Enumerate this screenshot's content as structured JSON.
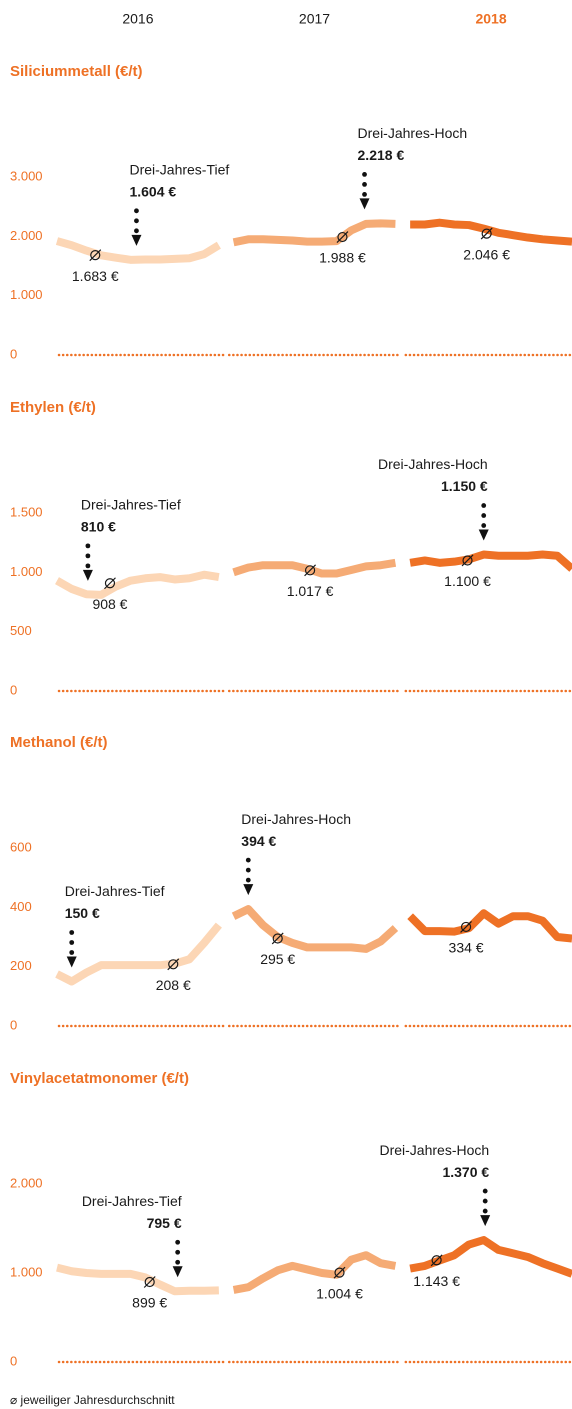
{
  "chart_data": [
    {
      "type": "line",
      "title": "Siliciummetall (€/t)",
      "xlim": [
        0,
        35
      ],
      "ylim": [
        0,
        3000
      ],
      "yticks": [
        0,
        {
          "value": 1000,
          "label": "1.000"
        },
        {
          "value": 2000,
          "label": "2.000"
        },
        {
          "value": 3000,
          "label": "3.000"
        }
      ],
      "baseline": true,
      "series": [
        {
          "name": "2016",
          "color": "#fcd6b5",
          "x": [
            0,
            1,
            2,
            3,
            4,
            5,
            6,
            7,
            8,
            9,
            10,
            11
          ],
          "values": [
            1920,
            1850,
            1760,
            1680,
            1640,
            1604,
            1610,
            1610,
            1620,
            1630,
            1700,
            1850
          ],
          "average": 1683,
          "average_label": "1.683 €",
          "average_x": 2.6
        },
        {
          "name": "2017",
          "color": "#f5ab75",
          "x": [
            12,
            13,
            14,
            15,
            16,
            17,
            18,
            19,
            20,
            21,
            22,
            23
          ],
          "values": [
            1900,
            1950,
            1950,
            1940,
            1930,
            1910,
            1910,
            1920,
            2100,
            2210,
            2218,
            2210
          ],
          "average": 1988,
          "average_label": "1.988 €",
          "average_x": 19.4
        },
        {
          "name": "2018",
          "color": "#ee7125",
          "x": [
            24,
            25,
            26,
            27,
            28,
            29,
            30,
            31,
            32,
            33,
            34,
            35
          ],
          "values": [
            2200,
            2200,
            2230,
            2200,
            2190,
            2130,
            2060,
            2020,
            1980,
            1950,
            1930,
            1910
          ],
          "average": 2046,
          "average_label": "2.046 €",
          "average_x": 29.2
        }
      ],
      "annotations": [
        {
          "text": "Drei-Jahres-Tief",
          "value": 1604,
          "label": "1.604 €",
          "x": 5.4
        },
        {
          "text": "Drei-Jahres-Hoch",
          "value": 2218,
          "label": "2.218 €",
          "x": 20.9
        }
      ]
    },
    {
      "type": "line",
      "title": "Ethylen (€/t)",
      "xlim": [
        0,
        35
      ],
      "ylim": [
        0,
        1500
      ],
      "yticks": [
        0,
        500,
        {
          "value": 1000,
          "label": "1.000"
        },
        {
          "value": 1500,
          "label": "1.500"
        }
      ],
      "baseline": true,
      "series": [
        {
          "name": "2016",
          "color": "#fcd6b5",
          "x": [
            0,
            1,
            2,
            3,
            4,
            5,
            6,
            7,
            8,
            9,
            10,
            11
          ],
          "values": [
            930,
            860,
            815,
            810,
            880,
            930,
            950,
            960,
            940,
            950,
            980,
            960
          ],
          "average": 908,
          "average_label": "908 €",
          "average_x": 3.6
        },
        {
          "name": "2017",
          "color": "#f5ab75",
          "x": [
            12,
            13,
            14,
            15,
            16,
            17,
            18,
            19,
            20,
            21,
            22,
            23
          ],
          "values": [
            1000,
            1040,
            1060,
            1060,
            1060,
            1030,
            990,
            990,
            1020,
            1050,
            1060,
            1080
          ],
          "average": 1017,
          "average_label": "1.017 €",
          "average_x": 17.2
        },
        {
          "name": "2018",
          "color": "#ee7125",
          "x": [
            24,
            25,
            26,
            27,
            28,
            29,
            30,
            31,
            32,
            33,
            34,
            35
          ],
          "values": [
            1080,
            1100,
            1080,
            1090,
            1110,
            1150,
            1140,
            1140,
            1140,
            1150,
            1140,
            1030
          ],
          "average": 1100,
          "average_label": "1.100 €",
          "average_x": 27.9
        }
      ],
      "annotations": [
        {
          "text": "Drei-Jahres-Tief",
          "value": 810,
          "label": "810 €",
          "x": 2.1
        },
        {
          "text": "Drei-Jahres-Hoch",
          "value": 1150,
          "label": "1.150 €",
          "x": 29
        }
      ]
    },
    {
      "type": "line",
      "title": "Methanol (€/t)",
      "xlim": [
        0,
        35
      ],
      "ylim": [
        0,
        600
      ],
      "yticks": [
        0,
        200,
        400,
        600
      ],
      "baseline": true,
      "series": [
        {
          "name": "2016",
          "color": "#fcd6b5",
          "x": [
            0,
            1,
            2,
            3,
            4,
            5,
            6,
            7,
            8,
            9,
            10,
            11
          ],
          "values": [
            175,
            150,
            180,
            205,
            205,
            205,
            205,
            205,
            210,
            225,
            280,
            340
          ],
          "average": 208,
          "average_label": "208 €",
          "average_x": 7.9
        },
        {
          "name": "2017",
          "color": "#f5ab75",
          "x": [
            12,
            13,
            14,
            15,
            16,
            17,
            18,
            19,
            20,
            21,
            22,
            23
          ],
          "values": [
            370,
            394,
            340,
            300,
            280,
            265,
            265,
            265,
            265,
            260,
            285,
            330
          ],
          "average": 295,
          "average_label": "295 €",
          "average_x": 15
        },
        {
          "name": "2018",
          "color": "#ee7125",
          "x": [
            24,
            25,
            26,
            27,
            28,
            29,
            30,
            31,
            32,
            33,
            34,
            35
          ],
          "values": [
            370,
            320,
            320,
            318,
            330,
            380,
            345,
            370,
            370,
            355,
            300,
            295
          ],
          "average": 334,
          "average_label": "334 €",
          "average_x": 27.8
        }
      ],
      "annotations": [
        {
          "text": "Drei-Jahres-Tief",
          "value": 150,
          "label": "150 €",
          "x": 1
        },
        {
          "text": "Drei-Jahres-Hoch",
          "value": 394,
          "label": "394 €",
          "x": 13
        }
      ]
    },
    {
      "type": "line",
      "title": "Vinylacetatmonomer (€/t)",
      "xlim": [
        0,
        35
      ],
      "ylim": [
        0,
        2000
      ],
      "yticks": [
        0,
        {
          "value": 1000,
          "label": "1.000"
        },
        {
          "value": 2000,
          "label": "2.000"
        }
      ],
      "baseline": true,
      "series": [
        {
          "name": "2016",
          "color": "#fcd6b5",
          "x": [
            0,
            1,
            2,
            3,
            4,
            5,
            6,
            7,
            8,
            9,
            10,
            11
          ],
          "values": [
            1060,
            1020,
            1000,
            990,
            990,
            990,
            950,
            870,
            795,
            800,
            800,
            805
          ],
          "average": 899,
          "average_label": "899 €",
          "average_x": 6.3
        },
        {
          "name": "2017",
          "color": "#f5ab75",
          "x": [
            12,
            13,
            14,
            15,
            16,
            17,
            18,
            19,
            20,
            21,
            22,
            23
          ],
          "values": [
            810,
            840,
            940,
            1030,
            1080,
            1040,
            1000,
            980,
            1150,
            1200,
            1110,
            1080
          ],
          "average": 1004,
          "average_label": "1.004 €",
          "average_x": 19.2
        },
        {
          "name": "2018",
          "color": "#ee7125",
          "x": [
            24,
            25,
            26,
            27,
            28,
            29,
            30,
            31,
            32,
            33,
            34,
            35
          ],
          "values": [
            1050,
            1080,
            1140,
            1200,
            1320,
            1370,
            1260,
            1220,
            1180,
            1110,
            1050,
            990
          ],
          "average": 1143,
          "average_label": "1.143 €",
          "average_x": 25.8
        }
      ],
      "annotations": [
        {
          "text": "Drei-Jahres-Tief",
          "value": 795,
          "label": "795 €",
          "x": 8.2
        },
        {
          "text": "Drei-Jahres-Hoch",
          "value": 1370,
          "label": "1.370 €",
          "x": 29.1
        }
      ]
    }
  ],
  "footnote": "⌀ jeweiliger Jahresdurchschnitt"
}
